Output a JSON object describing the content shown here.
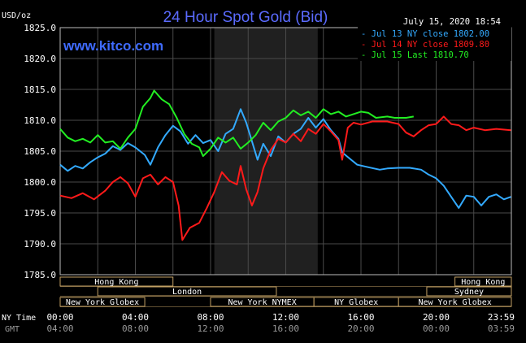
{
  "header": {
    "units": "USD/oz",
    "title": "24 Hour Spot Gold (Bid)",
    "timestamp": "July 15, 2020 18:54",
    "site": "www.kitco.com"
  },
  "legend": [
    {
      "text": "Jul 13 NY close 1802.00",
      "color": "#33aaff"
    },
    {
      "text": "Jul 14 NY close 1809.80",
      "color": "#ff1a1a"
    },
    {
      "text": "Jul 15 Last 1810.70",
      "color": "#22ee22"
    }
  ],
  "sessions": {
    "row1": [
      {
        "label": "Hong Kong",
        "start": 0,
        "end": 6
      },
      {
        "label": "Hong Kong",
        "start": 21,
        "end": 24
      }
    ],
    "row2": [
      {
        "label": "London",
        "start": 2,
        "end": 11.5
      },
      {
        "label": "Sydney",
        "start": 19.5,
        "end": 24
      }
    ],
    "row3": [
      {
        "label": "New York Globex",
        "start": 0,
        "end": 4.5
      },
      {
        "label": "New York NYMEX",
        "start": 8,
        "end": 13.5
      },
      {
        "label": "NY Globex",
        "start": 13.5,
        "end": 18
      },
      {
        "label": "New York Globex",
        "start": 18,
        "end": 24
      }
    ]
  },
  "time_axis": {
    "ny_label": "NY Time",
    "gmt_label": "GMT",
    "ny_ticks": [
      "00:00",
      "04:00",
      "08:00",
      "12:00",
      "16:00",
      "20:00",
      "23:59"
    ],
    "gmt_ticks": [
      "04:00",
      "08:00",
      "12:00",
      "16:00",
      "20:00",
      "00:00",
      "03:59"
    ]
  },
  "chart_data": {
    "type": "line",
    "title": "24 Hour Spot Gold (Bid)",
    "ylabel": "USD/oz",
    "xlabel": "NY Time",
    "xlim": [
      0,
      24
    ],
    "ylim": [
      1785,
      1825
    ],
    "yticks": [
      "1825.0",
      "1820.0",
      "1815.0",
      "1810.0",
      "1805.0",
      "1800.0",
      "1795.0",
      "1790.0",
      "1785.0"
    ],
    "grid": true,
    "shaded_period": [
      8.2,
      13.7
    ],
    "series": [
      {
        "name": "Jul 13 NY close 1802.00",
        "color": "#33aaff",
        "points": [
          [
            0,
            1802.8
          ],
          [
            0.4,
            1801.8
          ],
          [
            0.8,
            1802.6
          ],
          [
            1.2,
            1802.2
          ],
          [
            1.6,
            1803.2
          ],
          [
            2.0,
            1804.0
          ],
          [
            2.4,
            1804.6
          ],
          [
            2.8,
            1805.8
          ],
          [
            3.2,
            1805.2
          ],
          [
            3.6,
            1806.3
          ],
          [
            4.0,
            1805.6
          ],
          [
            4.5,
            1804.4
          ],
          [
            4.8,
            1802.8
          ],
          [
            5.2,
            1805.6
          ],
          [
            5.6,
            1807.6
          ],
          [
            6.0,
            1809.1
          ],
          [
            6.4,
            1808.2
          ],
          [
            6.8,
            1806.2
          ],
          [
            7.2,
            1807.6
          ],
          [
            7.6,
            1806.3
          ],
          [
            8.0,
            1806.8
          ],
          [
            8.4,
            1805.0
          ],
          [
            8.8,
            1807.8
          ],
          [
            9.2,
            1808.6
          ],
          [
            9.6,
            1811.8
          ],
          [
            9.9,
            1809.6
          ],
          [
            10.2,
            1806.6
          ],
          [
            10.5,
            1803.6
          ],
          [
            10.8,
            1806.2
          ],
          [
            11.2,
            1804.2
          ],
          [
            11.6,
            1807.4
          ],
          [
            12.0,
            1806.4
          ],
          [
            12.4,
            1807.8
          ],
          [
            12.8,
            1808.6
          ],
          [
            13.2,
            1810.4
          ],
          [
            13.6,
            1808.8
          ],
          [
            14.0,
            1810.2
          ],
          [
            14.4,
            1808.4
          ],
          [
            14.8,
            1807.0
          ],
          [
            15.0,
            1804.8
          ],
          [
            15.4,
            1803.8
          ],
          [
            15.8,
            1802.8
          ],
          [
            16.4,
            1802.4
          ],
          [
            17.0,
            1802.0
          ],
          [
            17.4,
            1802.2
          ],
          [
            18.0,
            1802.3
          ],
          [
            18.6,
            1802.3
          ],
          [
            19.2,
            1802.0
          ],
          [
            19.6,
            1801.2
          ],
          [
            20.0,
            1800.6
          ],
          [
            20.4,
            1799.4
          ],
          [
            20.8,
            1797.6
          ],
          [
            21.2,
            1795.8
          ],
          [
            21.6,
            1797.8
          ],
          [
            22.0,
            1797.6
          ],
          [
            22.4,
            1796.2
          ],
          [
            22.8,
            1797.6
          ],
          [
            23.2,
            1798.0
          ],
          [
            23.6,
            1797.2
          ],
          [
            23.98,
            1797.6
          ]
        ]
      },
      {
        "name": "Jul 14 NY close 1809.80",
        "color": "#ff1a1a",
        "points": [
          [
            0,
            1797.8
          ],
          [
            0.6,
            1797.4
          ],
          [
            1.2,
            1798.2
          ],
          [
            1.8,
            1797.2
          ],
          [
            2.4,
            1798.6
          ],
          [
            2.8,
            1800.0
          ],
          [
            3.2,
            1800.8
          ],
          [
            3.6,
            1799.8
          ],
          [
            4.0,
            1797.6
          ],
          [
            4.4,
            1800.6
          ],
          [
            4.8,
            1801.2
          ],
          [
            5.2,
            1799.6
          ],
          [
            5.6,
            1800.8
          ],
          [
            6.0,
            1800.0
          ],
          [
            6.3,
            1796.2
          ],
          [
            6.5,
            1790.6
          ],
          [
            6.9,
            1792.6
          ],
          [
            7.4,
            1793.4
          ],
          [
            7.8,
            1795.8
          ],
          [
            8.2,
            1798.4
          ],
          [
            8.6,
            1801.6
          ],
          [
            9.0,
            1800.2
          ],
          [
            9.4,
            1799.6
          ],
          [
            9.6,
            1802.6
          ],
          [
            9.9,
            1798.8
          ],
          [
            10.2,
            1796.2
          ],
          [
            10.5,
            1798.4
          ],
          [
            10.8,
            1802.2
          ],
          [
            11.2,
            1805.2
          ],
          [
            11.6,
            1807.0
          ],
          [
            12.0,
            1806.4
          ],
          [
            12.4,
            1807.8
          ],
          [
            12.8,
            1806.6
          ],
          [
            13.2,
            1808.6
          ],
          [
            13.6,
            1807.8
          ],
          [
            14.0,
            1809.4
          ],
          [
            14.4,
            1808.2
          ],
          [
            14.8,
            1806.8
          ],
          [
            15.0,
            1803.6
          ],
          [
            15.3,
            1808.8
          ],
          [
            15.6,
            1809.6
          ],
          [
            16.0,
            1809.3
          ],
          [
            16.6,
            1809.8
          ],
          [
            17.4,
            1809.8
          ],
          [
            18.0,
            1809.4
          ],
          [
            18.4,
            1808.0
          ],
          [
            18.8,
            1807.4
          ],
          [
            19.2,
            1808.4
          ],
          [
            19.6,
            1809.2
          ],
          [
            20.0,
            1809.4
          ],
          [
            20.4,
            1810.6
          ],
          [
            20.8,
            1809.4
          ],
          [
            21.2,
            1809.2
          ],
          [
            21.6,
            1808.4
          ],
          [
            22.0,
            1808.8
          ],
          [
            22.6,
            1808.4
          ],
          [
            23.2,
            1808.6
          ],
          [
            23.98,
            1808.4
          ]
        ]
      },
      {
        "name": "Jul 15 Last 1810.70",
        "color": "#22ee22",
        "points": [
          [
            0,
            1808.6
          ],
          [
            0.4,
            1807.2
          ],
          [
            0.8,
            1806.6
          ],
          [
            1.2,
            1807.0
          ],
          [
            1.6,
            1806.4
          ],
          [
            2.0,
            1807.6
          ],
          [
            2.4,
            1806.4
          ],
          [
            2.8,
            1806.6
          ],
          [
            3.2,
            1805.4
          ],
          [
            3.6,
            1807.2
          ],
          [
            4.0,
            1808.6
          ],
          [
            4.4,
            1812.2
          ],
          [
            4.8,
            1813.6
          ],
          [
            5.0,
            1814.8
          ],
          [
            5.4,
            1813.4
          ],
          [
            5.8,
            1812.6
          ],
          [
            6.2,
            1810.4
          ],
          [
            6.6,
            1807.8
          ],
          [
            7.0,
            1806.2
          ],
          [
            7.4,
            1805.6
          ],
          [
            7.6,
            1804.2
          ],
          [
            8.0,
            1805.4
          ],
          [
            8.4,
            1807.2
          ],
          [
            8.8,
            1806.4
          ],
          [
            9.2,
            1807.2
          ],
          [
            9.6,
            1805.4
          ],
          [
            10.0,
            1806.4
          ],
          [
            10.4,
            1807.6
          ],
          [
            10.8,
            1809.6
          ],
          [
            11.2,
            1808.4
          ],
          [
            11.6,
            1809.8
          ],
          [
            12.0,
            1810.4
          ],
          [
            12.4,
            1811.6
          ],
          [
            12.8,
            1810.8
          ],
          [
            13.2,
            1811.4
          ],
          [
            13.6,
            1810.4
          ],
          [
            14.0,
            1811.8
          ],
          [
            14.4,
            1811.0
          ],
          [
            14.8,
            1811.4
          ],
          [
            15.2,
            1810.6
          ],
          [
            15.6,
            1811.0
          ],
          [
            16.0,
            1811.4
          ],
          [
            16.4,
            1811.2
          ],
          [
            16.8,
            1810.4
          ],
          [
            17.4,
            1810.6
          ],
          [
            17.8,
            1810.4
          ],
          [
            18.4,
            1810.4
          ],
          [
            18.8,
            1810.6
          ]
        ]
      }
    ]
  }
}
